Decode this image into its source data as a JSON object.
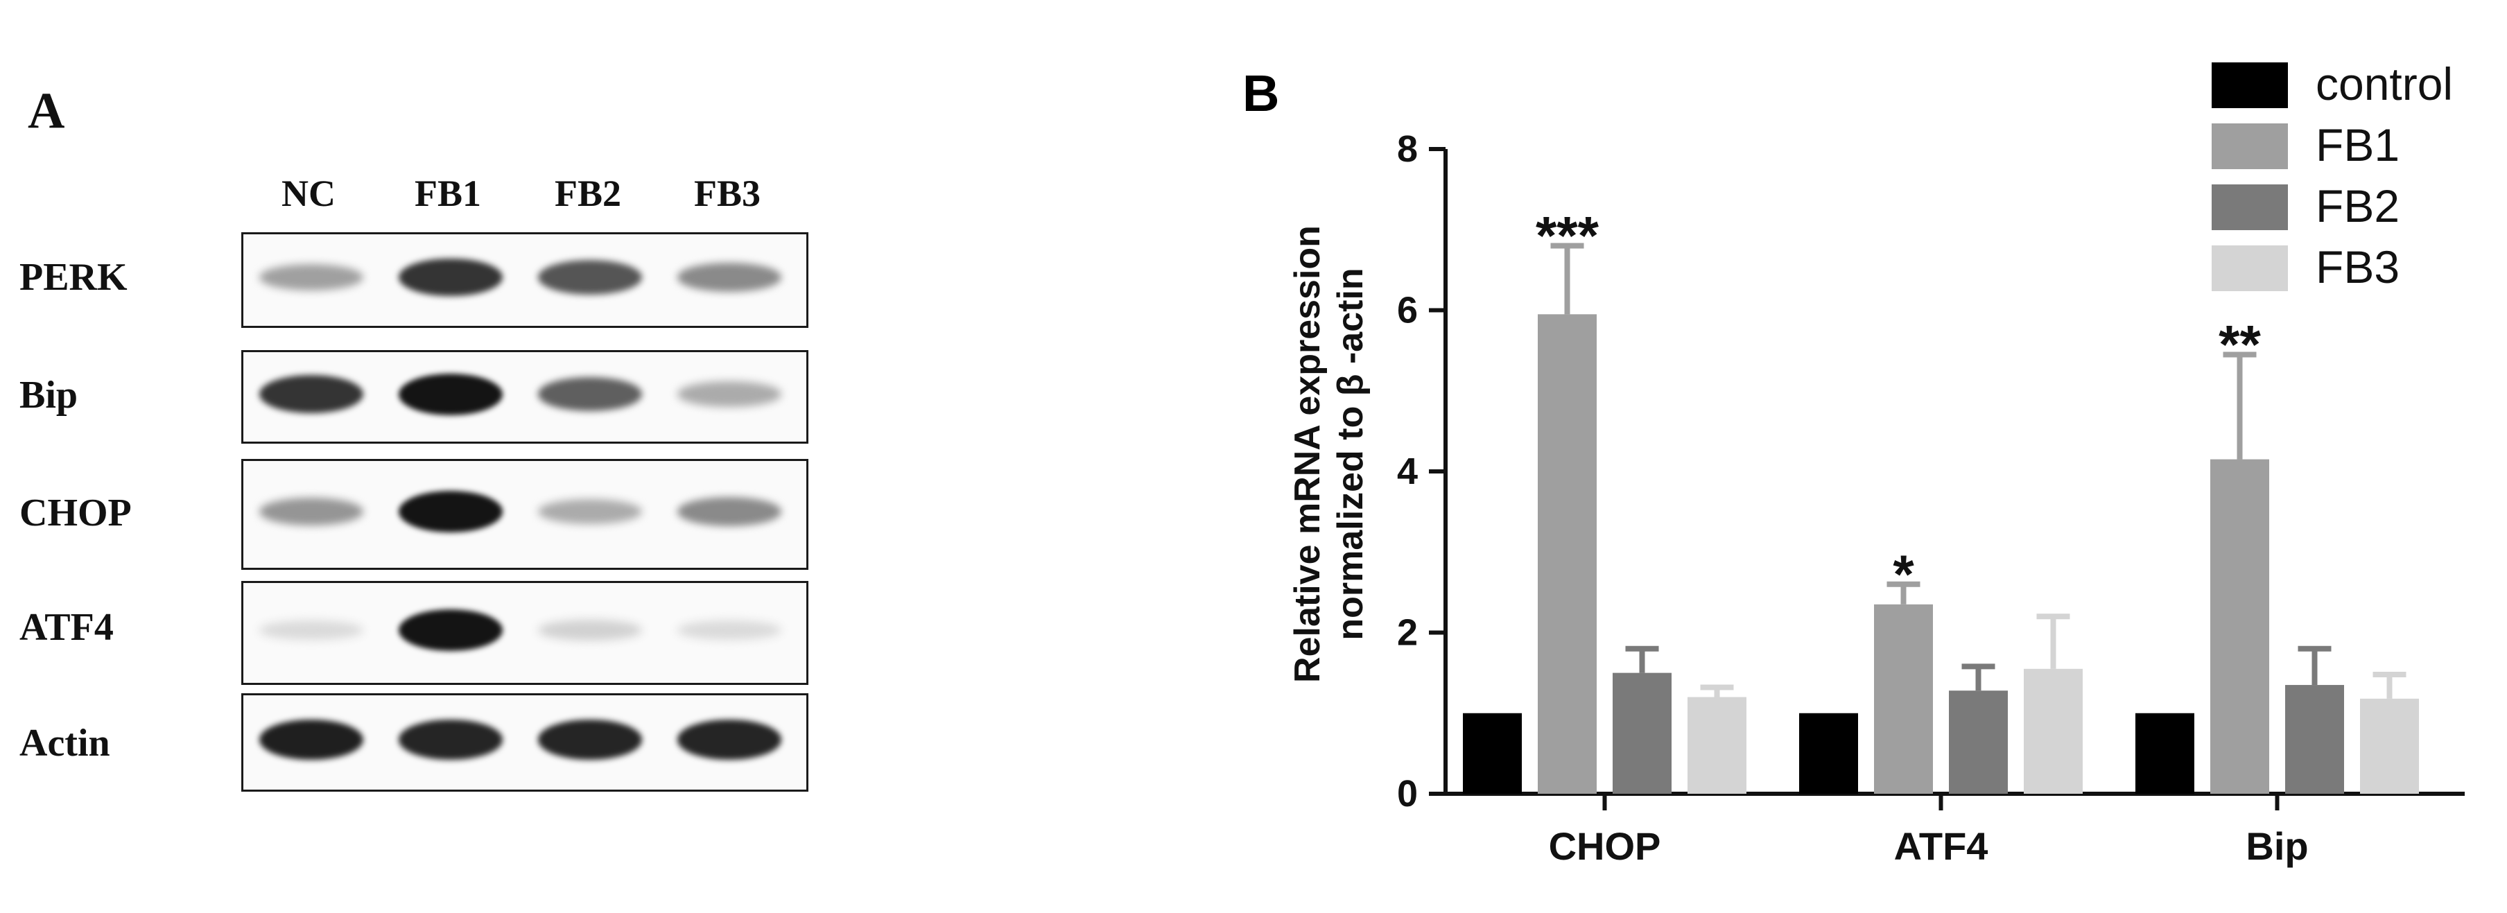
{
  "panel_a": {
    "label": "A",
    "lanes": [
      "NC",
      "FB1",
      "FB2",
      "FB3"
    ],
    "rows": [
      {
        "name": "PERK",
        "intensity": [
          0.35,
          0.85,
          0.7,
          0.45
        ]
      },
      {
        "name": "Bip",
        "intensity": [
          0.85,
          1.0,
          0.65,
          0.3
        ]
      },
      {
        "name": "CHOP",
        "intensity": [
          0.4,
          1.0,
          0.3,
          0.45
        ]
      },
      {
        "name": "ATF4",
        "intensity": [
          0.08,
          1.0,
          0.12,
          0.08
        ]
      },
      {
        "name": "Actin",
        "intensity": [
          0.95,
          0.92,
          0.92,
          0.92
        ]
      }
    ]
  },
  "colors": {
    "control": "#000000",
    "FB1": "#9f9f9f",
    "FB2": "#7a7a7a",
    "FB3": "#d4d4d4"
  },
  "chart_data": {
    "type": "bar",
    "panel_label": "B",
    "categories": [
      "CHOP",
      "ATF4",
      "Bip"
    ],
    "series": [
      {
        "name": "control",
        "values": [
          1.0,
          1.0,
          1.0
        ],
        "errors": [
          0,
          0,
          0
        ]
      },
      {
        "name": "FB1",
        "values": [
          5.95,
          2.35,
          4.15
        ],
        "errors": [
          0.85,
          0.25,
          1.3
        ]
      },
      {
        "name": "FB2",
        "values": [
          1.5,
          1.28,
          1.35
        ],
        "errors": [
          0.3,
          0.3,
          0.45
        ]
      },
      {
        "name": "FB3",
        "values": [
          1.2,
          1.55,
          1.18
        ],
        "errors": [
          0.12,
          0.65,
          0.3
        ]
      }
    ],
    "significance": [
      {
        "category": "CHOP",
        "series": "FB1",
        "label": "***"
      },
      {
        "category": "ATF4",
        "series": "FB1",
        "label": "*"
      },
      {
        "category": "Bip",
        "series": "FB1",
        "label": "**"
      }
    ],
    "ylabel_line1": "Relative mRNA expression",
    "ylabel_line2": "normalized to β -actin",
    "ylim": [
      0,
      8
    ],
    "yticks": [
      0,
      2,
      4,
      6,
      8
    ],
    "legend_position": "top-right",
    "grid": false
  }
}
